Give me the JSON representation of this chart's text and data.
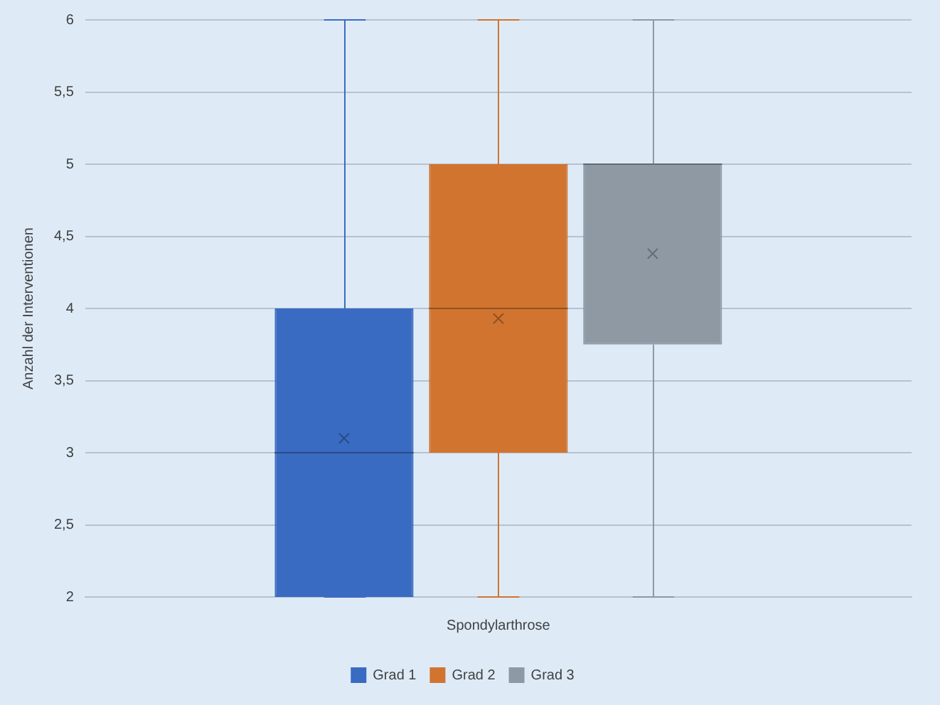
{
  "chart_data": {
    "type": "box",
    "categories": [
      "Spondylarthrose"
    ],
    "ylabel": "Anzahl der Interventionen",
    "ylim": [
      2,
      6
    ],
    "yticks": [
      2,
      {
        "value": 2.5,
        "label": "2,5"
      },
      3,
      {
        "value": 3.5,
        "label": "3,5"
      },
      4,
      {
        "value": 4.5,
        "label": "4,5"
      },
      5,
      {
        "value": 5.5,
        "label": "5,5"
      },
      6
    ],
    "grid": "y",
    "legend": "bottom",
    "series": [
      {
        "name": "Grad 1",
        "color": "#3a6bc2",
        "boxes": [
          {
            "low": 2,
            "q1": 2,
            "median": 3,
            "q3": 4,
            "high": 6,
            "mean": 3.1
          }
        ]
      },
      {
        "name": "Grad 2",
        "color": "#d07430",
        "boxes": [
          {
            "low": 2,
            "q1": 3,
            "median": 4,
            "q3": 5,
            "high": 6,
            "mean": 3.93
          }
        ]
      },
      {
        "name": "Grad 3",
        "color": "#8f99a3",
        "boxes": [
          {
            "low": 2,
            "q1": 3.75,
            "median": 5,
            "q3": 5,
            "high": 6,
            "mean": 4.38
          }
        ]
      }
    ]
  }
}
